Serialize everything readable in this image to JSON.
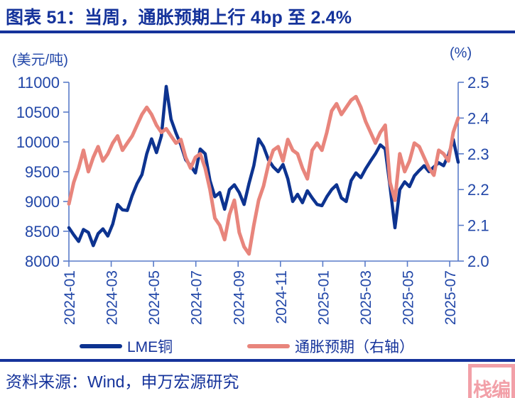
{
  "title": "图表 51：当周，通胀预期上行 4bp 至 2.4%",
  "footer": {
    "source": "资料来源：Wind，申万宏源研究"
  },
  "watermark": {
    "text": "栈编"
  },
  "colors": {
    "navy": "#15339b",
    "tick_text": "#2247a8",
    "axis_line": "#5a7cc9",
    "copper": "#0d3390",
    "salmon": "#e8857c",
    "seal": "#f2a0a8"
  },
  "chart_data": {
    "type": "line",
    "title": "当周，通胀预期上行 4bp 至 2.4%",
    "grid": false,
    "legend_position": "bottom",
    "x_range_months": [
      0,
      18.4
    ],
    "x_ticks": [
      {
        "m": 0,
        "label": "2024-01"
      },
      {
        "m": 2,
        "label": "2024-03"
      },
      {
        "m": 4,
        "label": "2024-05"
      },
      {
        "m": 6,
        "label": "2024-07"
      },
      {
        "m": 8,
        "label": "2024-09"
      },
      {
        "m": 10,
        "label": "2024-11"
      },
      {
        "m": 12,
        "label": "2025-01"
      },
      {
        "m": 14,
        "label": "2025-03"
      },
      {
        "m": 16,
        "label": "2025-05"
      },
      {
        "m": 18,
        "label": "2025-07"
      }
    ],
    "left_axis": {
      "label": "(美元/吨)",
      "range": [
        8000,
        11000
      ],
      "ticks": [
        "11000",
        "10500",
        "10000",
        "9500",
        "9000",
        "8500",
        "8000"
      ]
    },
    "right_axis": {
      "label": "(%)",
      "range": [
        2.0,
        2.5
      ],
      "ticks": [
        "2.5",
        "2.4",
        "2.3",
        "2.2",
        "2.1",
        "2.0"
      ]
    },
    "series": [
      {
        "name": "LME铜",
        "axis": "left",
        "color": "#0d3390",
        "width": 4.5,
        "values": [
          8560,
          8440,
          8330,
          8530,
          8480,
          8260,
          8460,
          8540,
          8420,
          8620,
          8950,
          8860,
          8850,
          9100,
          9300,
          9450,
          9800,
          10050,
          9820,
          10100,
          10930,
          10380,
          10150,
          9950,
          9700,
          9600,
          9480,
          9880,
          9800,
          9350,
          9080,
          9150,
          8870,
          9200,
          9280,
          9150,
          8950,
          9300,
          9600,
          10050,
          9920,
          9700,
          9580,
          9500,
          9620,
          9380,
          9000,
          9120,
          8980,
          9180,
          9060,
          8950,
          8930,
          9080,
          9200,
          9280,
          9060,
          9000,
          9350,
          9480,
          9400,
          9550,
          9680,
          9800,
          9950,
          9880,
          9250,
          8560,
          9200,
          9330,
          9250,
          9430,
          9520,
          9600,
          9500,
          9580,
          9650,
          9600,
          9780,
          10040,
          9660
        ]
      },
      {
        "name": "通胀预期（右轴）",
        "axis": "right",
        "color": "#e8857c",
        "width": 5,
        "values": [
          2.16,
          2.22,
          2.26,
          2.31,
          2.25,
          2.29,
          2.32,
          2.28,
          2.3,
          2.33,
          2.35,
          2.31,
          2.33,
          2.35,
          2.38,
          2.41,
          2.43,
          2.41,
          2.38,
          2.36,
          2.37,
          2.35,
          2.33,
          2.34,
          2.29,
          2.26,
          2.29,
          2.3,
          2.26,
          2.2,
          2.12,
          2.1,
          2.06,
          2.13,
          2.17,
          2.08,
          2.04,
          2.02,
          2.1,
          2.17,
          2.21,
          2.27,
          2.31,
          2.32,
          2.28,
          2.34,
          2.31,
          2.3,
          2.26,
          2.23,
          2.31,
          2.33,
          2.31,
          2.36,
          2.42,
          2.44,
          2.41,
          2.43,
          2.45,
          2.46,
          2.43,
          2.39,
          2.36,
          2.33,
          2.36,
          2.38,
          2.22,
          2.17,
          2.3,
          2.25,
          2.28,
          2.33,
          2.32,
          2.29,
          2.26,
          2.24,
          2.31,
          2.3,
          2.28,
          2.36,
          2.4
        ]
      }
    ]
  }
}
